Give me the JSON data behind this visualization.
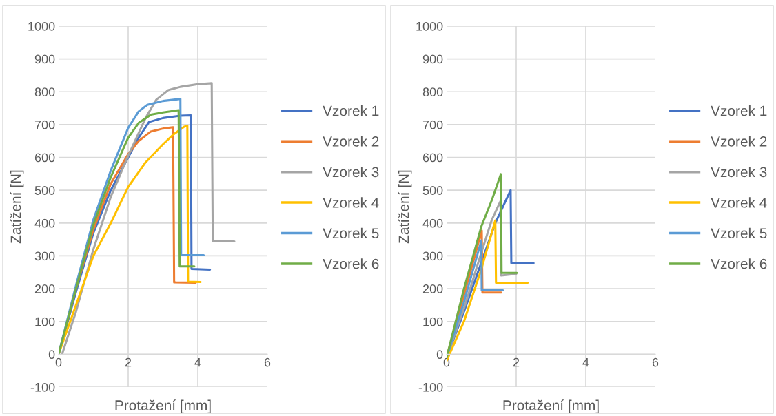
{
  "chart_data": [
    {
      "type": "line",
      "xlabel": "Protažení [mm]",
      "ylabel": "Zatížení [N]",
      "xlim": [
        0,
        6
      ],
      "ylim": [
        -100,
        1000
      ],
      "xticks": [
        0,
        2,
        4,
        6
      ],
      "yticks": [
        -100,
        0,
        100,
        200,
        300,
        400,
        500,
        600,
        700,
        800,
        900,
        1000
      ],
      "grid": true,
      "legend": "right",
      "marker": "none",
      "line_style": "solid",
      "series": [
        {
          "name": "Vzorek 1",
          "color": "#4472c4",
          "x": [
            0,
            0.5,
            1,
            1.5,
            2,
            2.3,
            2.6,
            3,
            3.5,
            3.8,
            3.82,
            4.35
          ],
          "values": [
            0,
            190,
            370,
            500,
            600,
            660,
            708,
            720,
            727,
            728,
            260,
            258
          ]
        },
        {
          "name": "Vzorek 2",
          "color": "#ed7d31",
          "x": [
            0,
            0.5,
            1,
            1.5,
            2,
            2.3,
            2.65,
            3,
            3.29,
            3.32,
            3.94
          ],
          "values": [
            0,
            200,
            380,
            520,
            610,
            650,
            679,
            688,
            692,
            219,
            218
          ]
        },
        {
          "name": "Vzorek 3",
          "color": "#a5a5a5",
          "x": [
            0.1,
            0.5,
            1,
            1.5,
            2,
            2.5,
            2.8,
            3.15,
            3.5,
            4,
            4.4,
            4.43,
            5.05
          ],
          "values": [
            0,
            130,
            320,
            480,
            605,
            720,
            775,
            805,
            815,
            823,
            826,
            344,
            344
          ]
        },
        {
          "name": "Vzorek 4",
          "color": "#ffc000",
          "x": [
            0,
            0.5,
            1,
            1.5,
            2,
            2.5,
            3,
            3.3,
            3.6,
            3.7,
            3.72,
            4.08
          ],
          "values": [
            0,
            150,
            300,
            400,
            510,
            585,
            640,
            670,
            693,
            697,
            221,
            220
          ]
        },
        {
          "name": "Vzorek 5",
          "color": "#5b9bd5",
          "x": [
            0,
            0.5,
            1,
            1.5,
            2,
            2.3,
            2.55,
            3,
            3.5,
            3.52,
            4.17
          ],
          "values": [
            0,
            210,
            410,
            560,
            690,
            740,
            760,
            772,
            778,
            302,
            302
          ]
        },
        {
          "name": "Vzorek 6",
          "color": "#70ad47",
          "x": [
            0,
            0.5,
            1,
            1.5,
            2,
            2.3,
            2.65,
            3,
            3.45,
            3.48,
            3.9
          ],
          "values": [
            0,
            200,
            395,
            540,
            660,
            705,
            730,
            737,
            744,
            268,
            268
          ]
        }
      ]
    },
    {
      "type": "line",
      "xlabel": "Protažení [mm]",
      "ylabel": "Zatížení [N]",
      "xlim": [
        0,
        6
      ],
      "ylim": [
        -100,
        1000
      ],
      "xticks": [
        0,
        2,
        4,
        6
      ],
      "yticks": [
        -100,
        0,
        100,
        200,
        300,
        400,
        500,
        600,
        700,
        800,
        900,
        1000
      ],
      "grid": true,
      "legend": "right",
      "marker": "none",
      "line_style": "solid",
      "series": [
        {
          "name": "Vzorek 1",
          "color": "#4472c4",
          "x": [
            0,
            0.5,
            1,
            1.4,
            1.84,
            1.86,
            2.5
          ],
          "values": [
            -10,
            130,
            280,
            400,
            500,
            278,
            278
          ]
        },
        {
          "name": "Vzorek 2",
          "color": "#ed7d31",
          "x": [
            0,
            0.5,
            1.01,
            1.03,
            1.57
          ],
          "values": [
            -10,
            180,
            377,
            188,
            188
          ]
        },
        {
          "name": "Vzorek 3",
          "color": "#a5a5a5",
          "x": [
            0,
            0.5,
            1,
            1.3,
            1.55,
            1.57,
            2.0
          ],
          "values": [
            -10,
            140,
            310,
            410,
            467,
            240,
            245
          ]
        },
        {
          "name": "Vzorek 4",
          "color": "#ffc000",
          "x": [
            0,
            0.5,
            1,
            1.4,
            1.42,
            2.33
          ],
          "values": [
            -20,
            100,
            260,
            408,
            218,
            218
          ]
        },
        {
          "name": "Vzorek 5",
          "color": "#5b9bd5",
          "x": [
            0,
            0.5,
            1.0,
            1.01,
            1.62
          ],
          "values": [
            -10,
            160,
            347,
            195,
            195
          ]
        },
        {
          "name": "Vzorek 6",
          "color": "#70ad47",
          "x": [
            0,
            0.5,
            1,
            1.3,
            1.56,
            1.58,
            2.02
          ],
          "values": [
            -10,
            200,
            390,
            470,
            549,
            248,
            248
          ]
        }
      ]
    }
  ]
}
